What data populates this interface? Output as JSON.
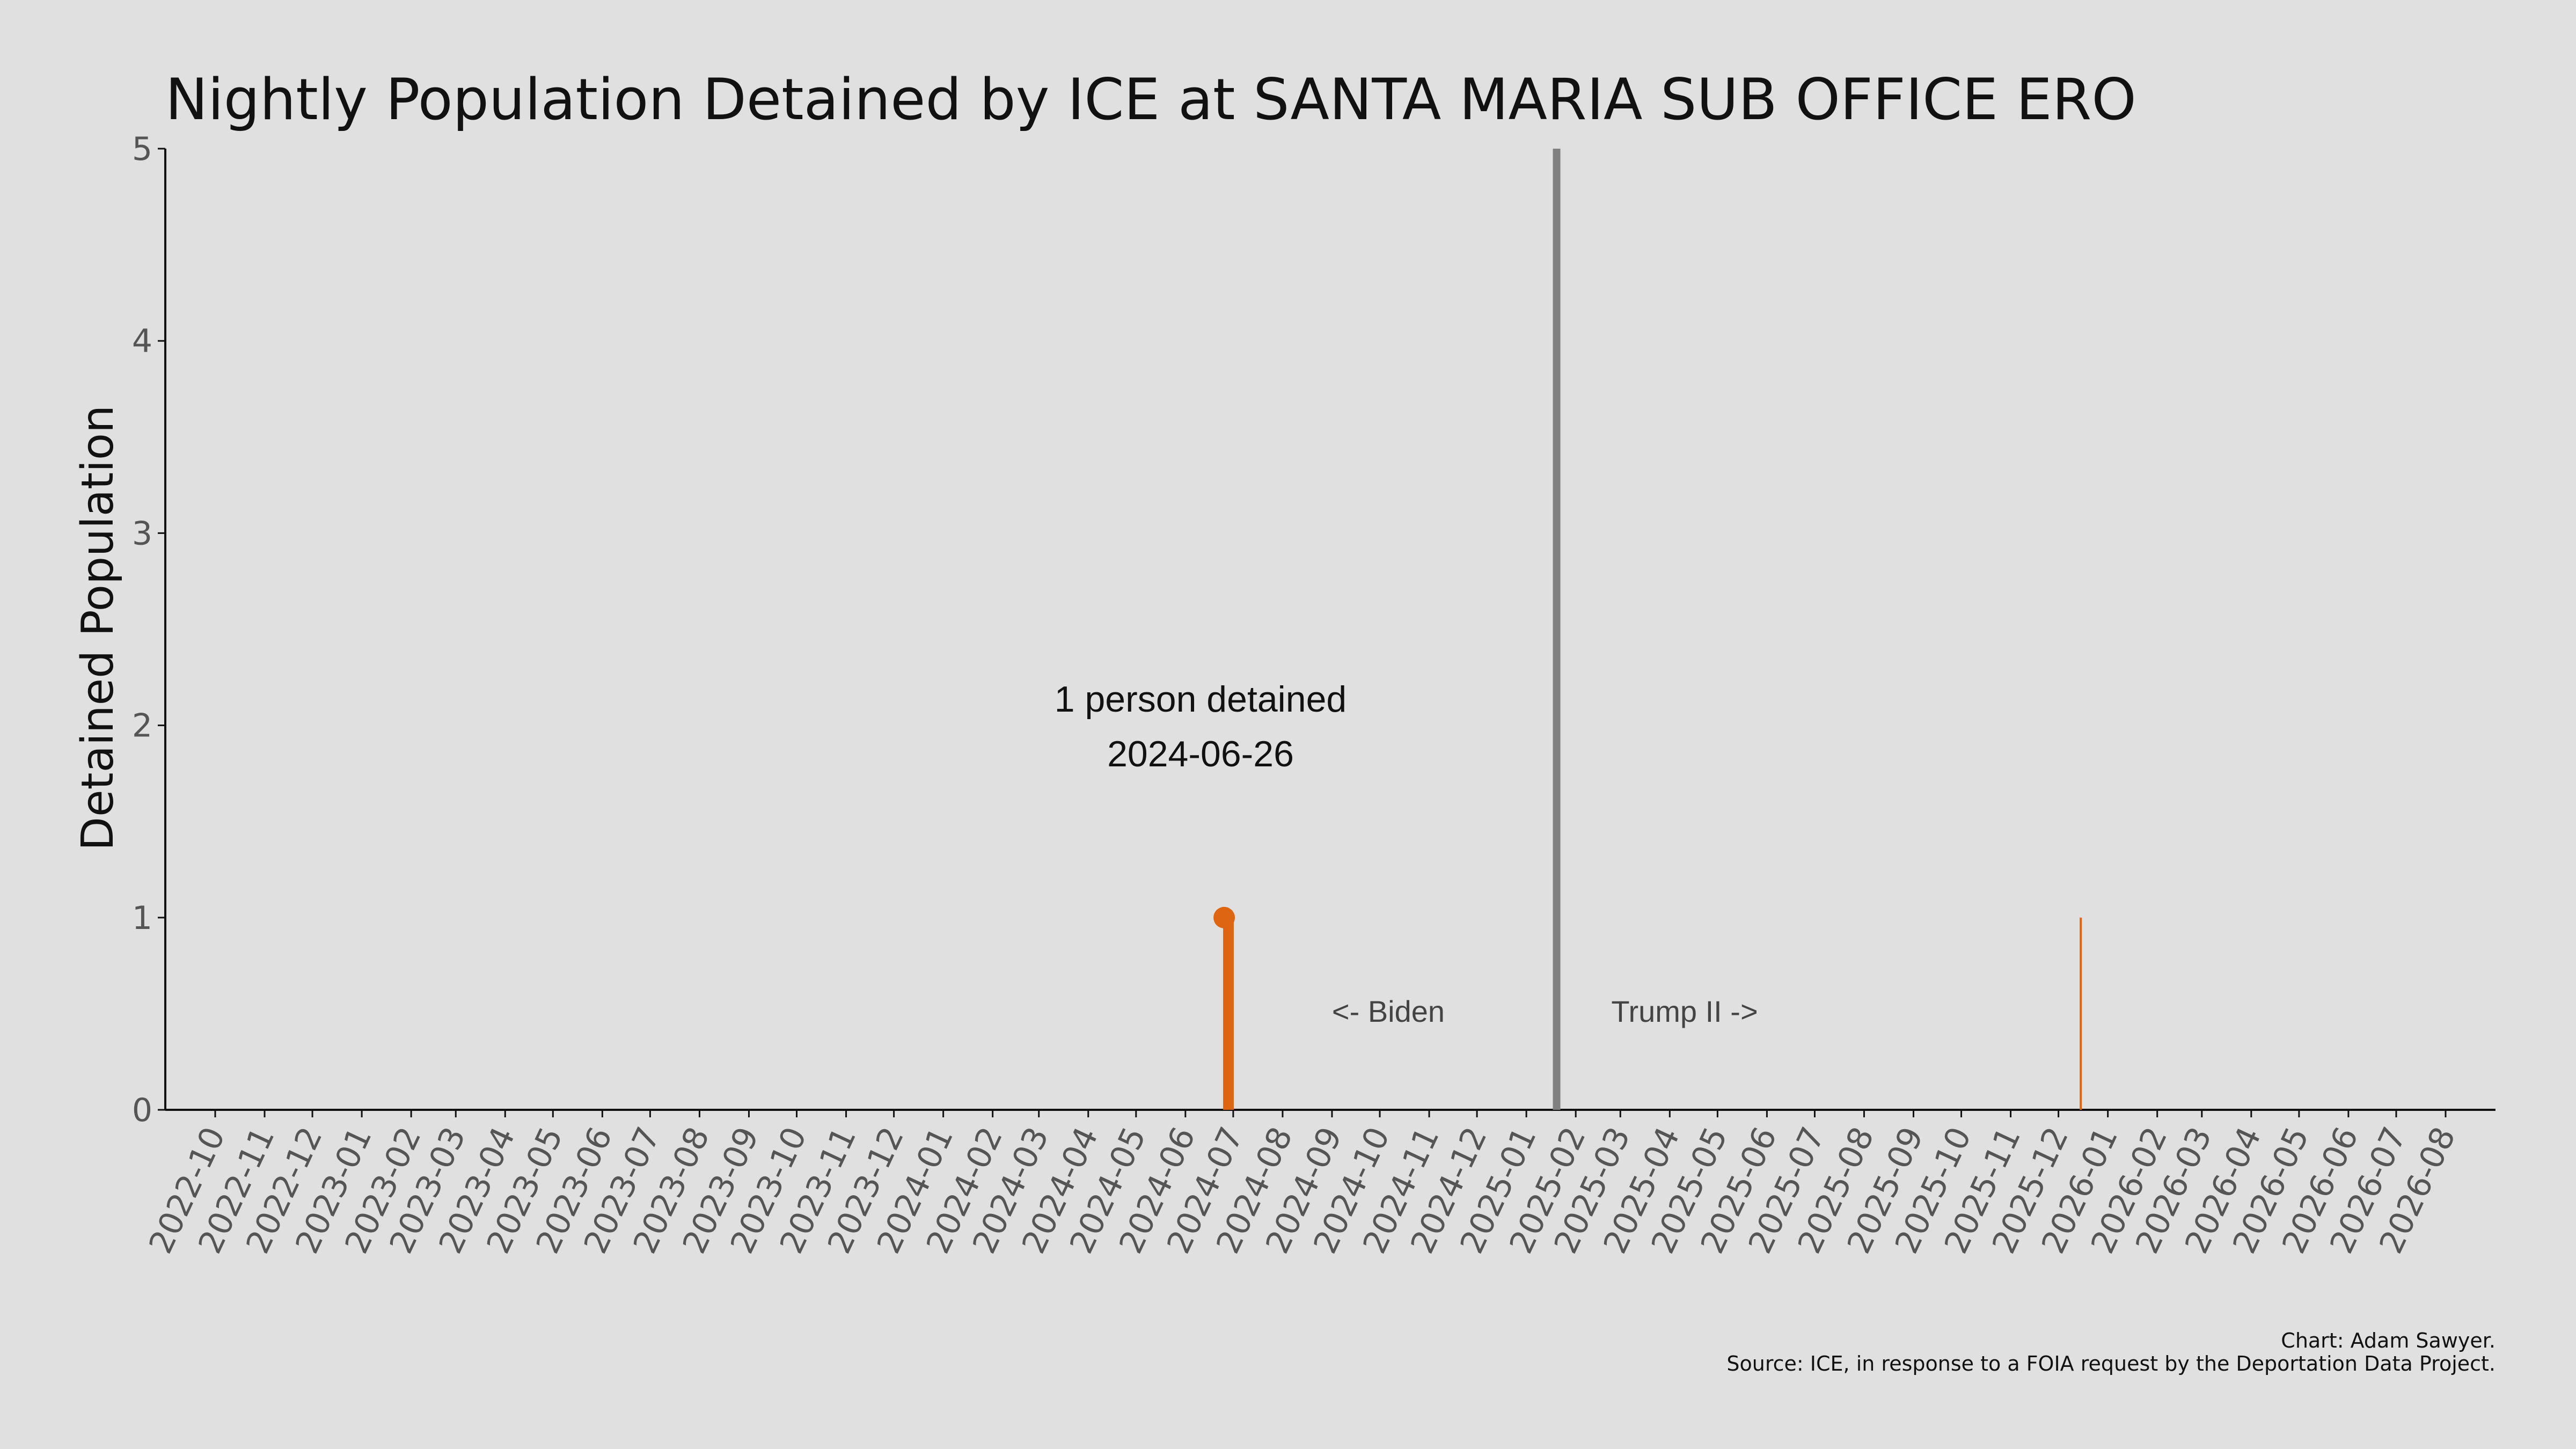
{
  "chart_data": {
    "type": "line",
    "title": "Nightly Population Detained by ICE at SANTA MARIA SUB OFFICE ERO",
    "xlabel": "",
    "ylabel": "Detained Population",
    "xlim": [
      "2022-10-01",
      "2026-08-31"
    ],
    "ylim": [
      0,
      5
    ],
    "x_ticks": [
      "2022-10",
      "2022-11",
      "2022-12",
      "2023-01",
      "2023-02",
      "2023-03",
      "2023-04",
      "2023-05",
      "2023-06",
      "2023-07",
      "2023-08",
      "2023-09",
      "2023-10",
      "2023-11",
      "2023-12",
      "2024-01",
      "2024-02",
      "2024-03",
      "2024-04",
      "2024-05",
      "2024-06",
      "2024-07",
      "2024-08",
      "2024-09",
      "2024-10",
      "2024-11",
      "2024-12",
      "2025-01",
      "2025-02",
      "2025-03",
      "2025-04",
      "2025-05",
      "2025-06",
      "2025-07",
      "2025-08",
      "2025-09",
      "2025-10",
      "2025-11",
      "2025-12",
      "2026-01",
      "2026-02",
      "2026-03",
      "2026-04",
      "2026-05",
      "2026-06",
      "2026-07",
      "2026-08"
    ],
    "y_ticks": [
      "0",
      "1",
      "2",
      "3",
      "4",
      "5"
    ],
    "grid": false,
    "series": [
      {
        "color": "#de6511",
        "x": [
          "2024-06-26",
          "2024-06-27",
          "2024-06-28",
          "2024-06-29",
          "2024-06-30",
          "2025-12-15"
        ],
        "y": [
          1,
          1,
          1,
          1,
          1,
          1
        ]
      }
    ],
    "highlight_point": {
      "x": "2024-06-26",
      "y": 1
    },
    "annotations": {
      "point_label_line1": "1 person detained",
      "point_label_line2": "2024-06-26",
      "divider_date": "2025-01-20",
      "divider_color": "#808080",
      "left_label": "<- Biden",
      "right_label": "Trump II ->"
    },
    "credit_line1": "Chart: Adam Sawyer.",
    "credit_line2": "Source: ICE, in response to a FOIA request by the Deportation Data Project."
  }
}
